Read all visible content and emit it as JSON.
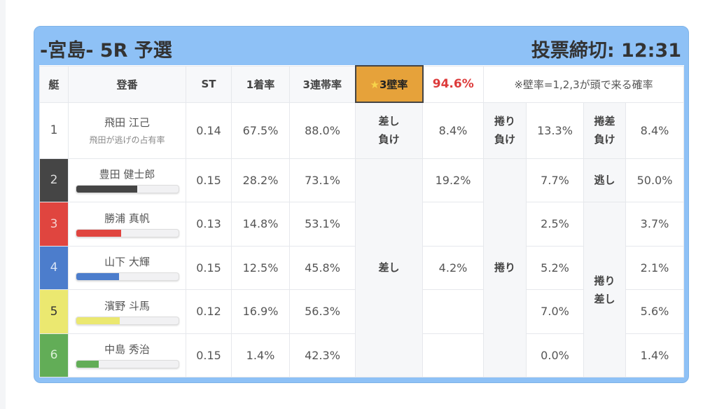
{
  "header": {
    "title": "-宮島- 5R 予選",
    "deadline": "投票締切: 12:31"
  },
  "columns": {
    "boat": "艇",
    "id": "登番",
    "st": "ST",
    "win": "1着率",
    "top3": "3連帯率",
    "wall": "3壁率",
    "wall_star": "★",
    "wall_value": "94.6%",
    "note": "※壁率=1,2,3が頭で来る確率"
  },
  "colors": {
    "header_bg": "#8ec1f6",
    "wall_bg": "#e6a23a",
    "wall_value": "#dd3b3b",
    "boat_colors": [
      "#ffffff",
      "#454545",
      "#e0453f",
      "#4c7dcc",
      "#ebe870",
      "#62ad57"
    ]
  },
  "rows": [
    {
      "boat": "1",
      "name": "飛田 江己",
      "sub": "飛田が逃げの占有率",
      "st": "0.14",
      "win": "67.5%",
      "top3": "88.0%",
      "a": "8.4%",
      "b": "13.3%",
      "c": "8.4%"
    },
    {
      "boat": "2",
      "name": "豊田 健士郎",
      "bar": 0.6,
      "st": "0.15",
      "win": "28.2%",
      "top3": "73.1%",
      "a": "19.2%",
      "b": "7.7%",
      "c": "50.0%"
    },
    {
      "boat": "3",
      "name": "勝浦 真帆",
      "bar": 0.44,
      "st": "0.13",
      "win": "14.8%",
      "top3": "53.1%",
      "a": "",
      "b": "2.5%",
      "c": "3.7%"
    },
    {
      "boat": "4",
      "name": "山下 大輝",
      "bar": 0.42,
      "st": "0.15",
      "win": "12.5%",
      "top3": "45.8%",
      "a": "4.2%",
      "b": "5.2%",
      "c": "2.1%"
    },
    {
      "boat": "5",
      "name": "濱野 斗馬",
      "bar": 0.43,
      "st": "0.12",
      "win": "16.9%",
      "top3": "56.3%",
      "a": "",
      "b": "7.0%",
      "c": "5.6%"
    },
    {
      "boat": "6",
      "name": "中島 秀治",
      "bar": 0.22,
      "st": "0.15",
      "win": "1.4%",
      "top3": "42.3%",
      "a": "",
      "b": "0.0%",
      "c": "1.4%"
    }
  ],
  "labels": {
    "sashi_make_1": "差し",
    "sashi_make_2": "負け",
    "makuri_make_1": "捲り",
    "makuri_make_2": "負け",
    "makusashi_make_1": "捲差",
    "makusashi_make_2": "負け",
    "sashi": "差し",
    "makuri": "捲り",
    "nige": "逃し",
    "makurisashi_1": "捲り",
    "makurisashi_2": "差し"
  }
}
